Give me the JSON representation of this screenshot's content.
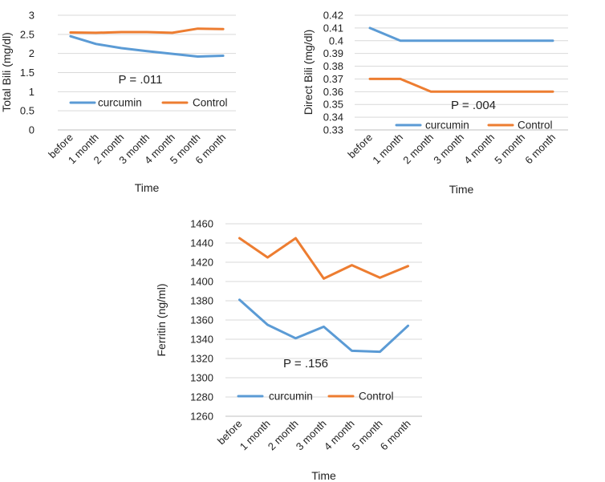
{
  "figure": {
    "charts": [
      "total-bili",
      "direct-bili",
      "ferritin"
    ]
  },
  "chart_data": [
    {
      "type": "line",
      "id": "total-bili",
      "title": "",
      "xlabel": "Time",
      "ylabel": "Total Bili (mg/dl)",
      "categories": [
        "before",
        "1 month",
        "2 month",
        "3 month",
        "4 month",
        "5 month",
        "6 month"
      ],
      "series": [
        {
          "name": "curcumin",
          "color": "#5b9bd5",
          "values": [
            2.45,
            2.25,
            2.14,
            2.06,
            1.99,
            1.92,
            1.94
          ]
        },
        {
          "name": "Control",
          "color": "#ed7d31",
          "values": [
            2.55,
            2.54,
            2.56,
            2.56,
            2.54,
            2.65,
            2.64
          ]
        }
      ],
      "ylim": [
        0,
        3
      ],
      "yticks": [
        0,
        0.5,
        1,
        1.5,
        2,
        2.5,
        3
      ],
      "ytick_labels": [
        "0",
        "0.5",
        "1",
        "1.5",
        "2",
        "2.5",
        "3"
      ],
      "grid": true,
      "legend": "center",
      "annotation": "P = .011"
    },
    {
      "type": "line",
      "id": "direct-bili",
      "title": "",
      "xlabel": "Time",
      "ylabel": "Direct Bili (mg/dl)",
      "categories": [
        "before",
        "1 month",
        "2 month",
        "3 month",
        "4 month",
        "5 month",
        "6 month"
      ],
      "series": [
        {
          "name": "curcumin",
          "color": "#5b9bd5",
          "values": [
            0.41,
            0.4,
            0.4,
            0.4,
            0.4,
            0.4,
            0.4
          ]
        },
        {
          "name": "Control",
          "color": "#ed7d31",
          "values": [
            0.37,
            0.37,
            0.36,
            0.36,
            0.36,
            0.36,
            0.36
          ]
        }
      ],
      "ylim": [
        0.33,
        0.42
      ],
      "yticks": [
        0.33,
        0.34,
        0.35,
        0.36,
        0.37,
        0.38,
        0.39,
        0.4,
        0.41,
        0.42
      ],
      "ytick_labels": [
        "0.33",
        "0.34",
        "0.35",
        "0.36",
        "0.37",
        "0.38",
        "0.39",
        "0.4",
        "0.41",
        "0.42"
      ],
      "grid": true,
      "legend": "bottom",
      "annotation": "P = .004"
    },
    {
      "type": "line",
      "id": "ferritin",
      "title": "",
      "xlabel": "Time",
      "ylabel": "Ferritin (ng/ml)",
      "categories": [
        "before",
        "1 month",
        "2 month",
        "3 month",
        "4 month",
        "5 month",
        "6 month"
      ],
      "series": [
        {
          "name": "curcumin",
          "color": "#5b9bd5",
          "values": [
            1381,
            1355,
            1341,
            1353,
            1328,
            1327,
            1354
          ]
        },
        {
          "name": "Control",
          "color": "#ed7d31",
          "values": [
            1445,
            1425,
            1445,
            1403,
            1417,
            1404,
            1416
          ]
        }
      ],
      "ylim": [
        1260,
        1460
      ],
      "yticks": [
        1260,
        1280,
        1300,
        1320,
        1340,
        1360,
        1380,
        1400,
        1420,
        1440,
        1460
      ],
      "ytick_labels": [
        "1260",
        "1280",
        "1300",
        "1320",
        "1340",
        "1360",
        "1380",
        "1400",
        "1420",
        "1440",
        "1460"
      ],
      "grid": true,
      "legend": "bottom",
      "annotation": "P = .156"
    }
  ]
}
